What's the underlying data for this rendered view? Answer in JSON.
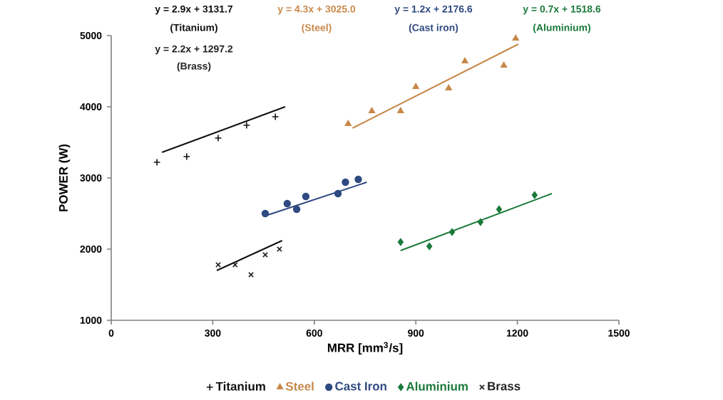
{
  "chart_data": {
    "type": "scatter",
    "xlabel": "MRR [mm$^{3}$/s]",
    "ylabel": "POWER (W)",
    "xlim": [
      0,
      1500
    ],
    "xticks": [
      0,
      300,
      600,
      900,
      1200,
      1500
    ],
    "ylim": [
      1000,
      5000
    ],
    "yticks": [
      1000,
      2000,
      3000,
      4000,
      5000
    ],
    "grid": false,
    "legend": "bottom",
    "annotations": [
      "y = 2.9x + 3131.7",
      "(Titanium)",
      "y = 4.3x + 3025.0",
      "(Steel)",
      "y = 1.2x + 2176.6",
      "(Cast  iron)",
      "y = 0.7x + 1518.6",
      "(Aluminium)",
      "y = 2.2x + 1297.2",
      "(Brass)"
    ],
    "series": [
      {
        "name": "Titanium",
        "marker": "plus",
        "color": "#111111",
        "x": [
          135,
          223,
          316,
          400,
          485
        ],
        "values": [
          3220,
          3300,
          3560,
          3740,
          3860
        ]
      },
      {
        "name": "Steel",
        "marker": "triangle",
        "color": "#c8884a",
        "x": [
          700,
          770,
          855,
          900,
          997,
          1045,
          1160,
          1195
        ],
        "values": [
          3760,
          3940,
          3940,
          4280,
          4260,
          4640,
          4580,
          4960
        ]
      },
      {
        "name": "Cast Iron",
        "marker": "circle",
        "color": "#2e4a80",
        "x": [
          455,
          520,
          548,
          575,
          670,
          692,
          730
        ],
        "values": [
          2500,
          2640,
          2560,
          2740,
          2780,
          2940,
          2980
        ]
      },
      {
        "name": "Aluminium",
        "marker": "diamond",
        "color": "#1a7a3a",
        "x": [
          855,
          940,
          1007,
          1091,
          1146,
          1251
        ],
        "values": [
          2100,
          2040,
          2240,
          2380,
          2560,
          2760
        ]
      },
      {
        "name": "Brass",
        "marker": "cross",
        "color": "#222222",
        "x": [
          316,
          366,
          413,
          455,
          497
        ],
        "values": [
          1780,
          1780,
          1640,
          1920,
          2000
        ]
      },
      {
        "type": "line",
        "line_style": "solid",
        "color": "#111111",
        "x": [
          150,
          514
        ],
        "values": [
          3360,
          4000
        ]
      },
      {
        "type": "line",
        "line_style": "solid",
        "color": "#c8884a",
        "x": [
          713,
          1203
        ],
        "values": [
          3700,
          4880
        ]
      },
      {
        "type": "line",
        "line_style": "solid",
        "color": "#2e4a80",
        "x": [
          463,
          755
        ],
        "values": [
          2480,
          2940
        ]
      },
      {
        "type": "line",
        "line_style": "solid",
        "color": "#1a7a3a",
        "x": [
          855,
          1302
        ],
        "values": [
          1980,
          2780
        ]
      },
      {
        "type": "line",
        "line_style": "solid",
        "color": "#111111",
        "x": [
          312,
          505
        ],
        "values": [
          1700,
          2120
        ]
      }
    ]
  }
}
